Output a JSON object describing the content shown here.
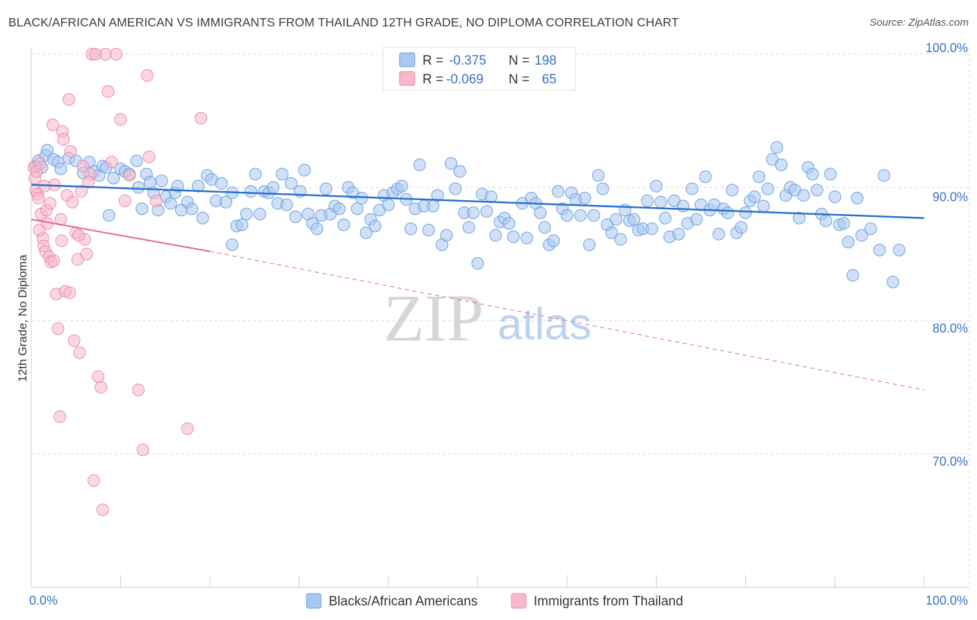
{
  "header": {
    "title": "BLACK/AFRICAN AMERICAN VS IMMIGRANTS FROM THAILAND 12TH GRADE, NO DIPLOMA CORRELATION CHART",
    "source": "Source: ZipAtlas.com"
  },
  "legend_box": {
    "rows": [
      {
        "r_label": "R =",
        "r_value": "-0.375",
        "n_label": "N =",
        "n_value": "198",
        "color": "#a9c8f0"
      },
      {
        "r_label": "R =",
        "r_value": "-0.069",
        "n_label": "N =",
        "n_value": "65",
        "color": "#f6b8cb"
      }
    ]
  },
  "watermark": {
    "zip": "ZIP",
    "atlas": "atlas"
  },
  "chart_data": {
    "type": "scatter",
    "title": "BLACK/AFRICAN AMERICAN VS IMMIGRANTS FROM THAILAND 12TH GRADE, NO DIPLOMA CORRELATION CHART",
    "xlabel": "",
    "ylabel": "12th Grade, No Diploma",
    "xlim": [
      0,
      100
    ],
    "ylim": [
      60.5,
      102.5
    ],
    "x_tick_labels": [
      "0.0%",
      "100.0%"
    ],
    "y_tick_labels": [
      "100.0%",
      "90.0%",
      "80.0%",
      "70.0%"
    ],
    "y_ticks": [
      100,
      90,
      80,
      70
    ],
    "grid": true,
    "legend_position": "bottom",
    "colors": {
      "blue_fill": "#a9c8f0",
      "blue_stroke": "#6a9fe0",
      "blue_line": "#2a6fd0",
      "pink_fill": "#f6b8cb",
      "pink_stroke": "#ee89a8",
      "pink_line": "#e5638f"
    },
    "series": [
      {
        "name": "Blacks/African Americans",
        "color": "#a9c8f0",
        "trend": {
          "x": [
            0,
            100
          ],
          "y": [
            90.2,
            87.7
          ]
        },
        "points": [
          [
            0.5,
            91.6
          ],
          [
            0.8,
            92.0
          ],
          [
            1.2,
            91.5
          ],
          [
            1.6,
            92.4
          ],
          [
            1.8,
            92.8
          ],
          [
            2.5,
            92.1
          ],
          [
            3.0,
            91.9
          ],
          [
            3.3,
            91.4
          ],
          [
            4.2,
            92.2
          ],
          [
            5.0,
            92.0
          ],
          [
            5.8,
            91.1
          ],
          [
            6.5,
            91.9
          ],
          [
            7.0,
            91.2
          ],
          [
            7.6,
            90.9
          ],
          [
            8.0,
            91.6
          ],
          [
            8.4,
            91.5
          ],
          [
            8.7,
            87.9
          ],
          [
            9.2,
            90.7
          ],
          [
            10.0,
            91.4
          ],
          [
            10.5,
            91.2
          ],
          [
            11.0,
            91.0
          ],
          [
            11.8,
            92.0
          ],
          [
            12.0,
            90.0
          ],
          [
            12.4,
            88.4
          ],
          [
            12.9,
            91.0
          ],
          [
            13.3,
            90.4
          ],
          [
            13.7,
            89.6
          ],
          [
            14.2,
            88.3
          ],
          [
            14.6,
            90.5
          ],
          [
            15.1,
            89.3
          ],
          [
            15.6,
            88.8
          ],
          [
            16.1,
            89.6
          ],
          [
            16.4,
            90.1
          ],
          [
            16.8,
            88.3
          ],
          [
            17.5,
            88.9
          ],
          [
            18.0,
            88.4
          ],
          [
            18.7,
            90.1
          ],
          [
            19.2,
            87.7
          ],
          [
            19.7,
            90.9
          ],
          [
            20.2,
            90.6
          ],
          [
            20.7,
            89.0
          ],
          [
            21.3,
            90.3
          ],
          [
            21.8,
            88.9
          ],
          [
            22.5,
            89.6
          ],
          [
            22.5,
            85.7
          ],
          [
            23.0,
            87.1
          ],
          [
            23.6,
            87.2
          ],
          [
            24.1,
            88.0
          ],
          [
            24.6,
            89.7
          ],
          [
            25.1,
            91.0
          ],
          [
            25.6,
            88.0
          ],
          [
            26.1,
            89.7
          ],
          [
            26.6,
            89.6
          ],
          [
            27.1,
            90.0
          ],
          [
            27.6,
            88.8
          ],
          [
            28.1,
            91.0
          ],
          [
            28.6,
            88.7
          ],
          [
            29.1,
            90.3
          ],
          [
            29.6,
            87.8
          ],
          [
            30.1,
            89.7
          ],
          [
            30.6,
            91.3
          ],
          [
            31.0,
            88.0
          ],
          [
            31.5,
            87.3
          ],
          [
            32.0,
            86.9
          ],
          [
            32.5,
            87.9
          ],
          [
            33.0,
            89.9
          ],
          [
            33.5,
            88.0
          ],
          [
            34.0,
            88.6
          ],
          [
            34.5,
            88.4
          ],
          [
            35.0,
            87.2
          ],
          [
            35.5,
            90.0
          ],
          [
            36.0,
            89.6
          ],
          [
            36.5,
            88.4
          ],
          [
            37.0,
            89.2
          ],
          [
            37.5,
            86.6
          ],
          [
            38.0,
            87.6
          ],
          [
            38.5,
            87.1
          ],
          [
            39.0,
            88.3
          ],
          [
            39.5,
            89.4
          ],
          [
            40.0,
            88.7
          ],
          [
            40.5,
            89.6
          ],
          [
            41.0,
            89.9
          ],
          [
            41.5,
            90.1
          ],
          [
            42.0,
            89.1
          ],
          [
            42.5,
            86.9
          ],
          [
            43.0,
            88.4
          ],
          [
            43.5,
            91.7
          ],
          [
            44.0,
            88.6
          ],
          [
            44.5,
            86.8
          ],
          [
            45.0,
            88.6
          ],
          [
            45.5,
            89.4
          ],
          [
            46.0,
            85.7
          ],
          [
            46.5,
            86.4
          ],
          [
            47.0,
            91.8
          ],
          [
            47.5,
            89.9
          ],
          [
            48.0,
            91.2
          ],
          [
            48.5,
            88.1
          ],
          [
            49.0,
            87.0
          ],
          [
            49.5,
            88.1
          ],
          [
            50.0,
            84.3
          ],
          [
            50.5,
            89.5
          ],
          [
            51.0,
            88.2
          ],
          [
            51.5,
            89.3
          ],
          [
            52.0,
            86.4
          ],
          [
            52.5,
            87.4
          ],
          [
            53.0,
            87.7
          ],
          [
            53.5,
            87.3
          ],
          [
            54.0,
            86.3
          ],
          [
            55.0,
            88.8
          ],
          [
            55.5,
            86.2
          ],
          [
            56.0,
            89.2
          ],
          [
            56.5,
            88.8
          ],
          [
            57.0,
            88.1
          ],
          [
            57.5,
            87.0
          ],
          [
            58.0,
            85.7
          ],
          [
            58.5,
            86.0
          ],
          [
            59.0,
            89.7
          ],
          [
            59.5,
            88.4
          ],
          [
            60.0,
            87.9
          ],
          [
            60.5,
            89.6
          ],
          [
            61.0,
            89.1
          ],
          [
            61.5,
            87.9
          ],
          [
            62.0,
            89.2
          ],
          [
            62.5,
            85.7
          ],
          [
            63.0,
            87.9
          ],
          [
            63.5,
            90.9
          ],
          [
            64.0,
            89.9
          ],
          [
            64.5,
            87.2
          ],
          [
            65.0,
            86.6
          ],
          [
            65.5,
            87.6
          ],
          [
            66.0,
            86.1
          ],
          [
            66.5,
            88.3
          ],
          [
            67.0,
            87.5
          ],
          [
            67.5,
            87.6
          ],
          [
            68.0,
            86.8
          ],
          [
            68.5,
            86.9
          ],
          [
            69.0,
            89.0
          ],
          [
            69.5,
            86.9
          ],
          [
            70.0,
            90.1
          ],
          [
            70.5,
            88.9
          ],
          [
            71.0,
            87.7
          ],
          [
            71.5,
            86.3
          ],
          [
            72.0,
            89.0
          ],
          [
            72.5,
            86.5
          ],
          [
            73.0,
            88.6
          ],
          [
            73.5,
            87.3
          ],
          [
            74.0,
            89.9
          ],
          [
            74.5,
            87.6
          ],
          [
            75.0,
            88.7
          ],
          [
            75.5,
            90.8
          ],
          [
            76.0,
            88.3
          ],
          [
            76.5,
            88.7
          ],
          [
            77.0,
            86.5
          ],
          [
            77.5,
            88.4
          ],
          [
            78.0,
            88.1
          ],
          [
            78.5,
            89.8
          ],
          [
            79.0,
            86.6
          ],
          [
            79.5,
            87.0
          ],
          [
            80.0,
            88.1
          ],
          [
            80.5,
            89.0
          ],
          [
            81.0,
            89.3
          ],
          [
            81.5,
            90.8
          ],
          [
            82.0,
            88.6
          ],
          [
            82.5,
            89.9
          ],
          [
            83.0,
            92.1
          ],
          [
            83.5,
            93.0
          ],
          [
            84.0,
            91.7
          ],
          [
            84.5,
            89.4
          ],
          [
            85.0,
            90.0
          ],
          [
            85.5,
            89.8
          ],
          [
            86.0,
            87.7
          ],
          [
            86.5,
            89.4
          ],
          [
            87.0,
            91.5
          ],
          [
            87.5,
            91.0
          ],
          [
            88.0,
            89.8
          ],
          [
            88.5,
            88.0
          ],
          [
            89.0,
            87.5
          ],
          [
            89.5,
            91.0
          ],
          [
            90.0,
            89.3
          ],
          [
            90.5,
            87.2
          ],
          [
            91.0,
            87.3
          ],
          [
            91.5,
            85.9
          ],
          [
            92.0,
            83.4
          ],
          [
            92.5,
            89.2
          ],
          [
            93.0,
            86.4
          ],
          [
            94.0,
            86.9
          ],
          [
            95.0,
            85.3
          ],
          [
            95.5,
            90.9
          ],
          [
            96.5,
            82.9
          ],
          [
            97.2,
            85.3
          ]
        ]
      },
      {
        "name": "Immigrants from Thailand",
        "color": "#f6b8cb",
        "trend_solid": {
          "x": [
            0,
            20
          ],
          "y": [
            87.6,
            85.2
          ]
        },
        "trend_dashed": {
          "x": [
            20,
            100
          ],
          "y": [
            85.2,
            74.8
          ]
        },
        "points": [
          [
            0.3,
            91.5
          ],
          [
            0.4,
            90.7
          ],
          [
            0.5,
            89.8
          ],
          [
            0.6,
            91.2
          ],
          [
            0.7,
            89.5
          ],
          [
            0.8,
            89.2
          ],
          [
            1.0,
            91.8
          ],
          [
            1.1,
            88.0
          ],
          [
            1.3,
            86.2
          ],
          [
            1.4,
            85.6
          ],
          [
            1.6,
            85.2
          ],
          [
            1.7,
            88.3
          ],
          [
            1.8,
            87.3
          ],
          [
            2.0,
            84.8
          ],
          [
            2.1,
            88.8
          ],
          [
            2.2,
            84.4
          ],
          [
            2.5,
            84.5
          ],
          [
            2.6,
            90.2
          ],
          [
            2.8,
            82.0
          ],
          [
            3.0,
            79.4
          ],
          [
            3.2,
            72.8
          ],
          [
            3.4,
            86.0
          ],
          [
            3.5,
            94.2
          ],
          [
            3.6,
            93.6
          ],
          [
            3.8,
            82.2
          ],
          [
            4.0,
            89.4
          ],
          [
            4.2,
            96.6
          ],
          [
            4.4,
            92.7
          ],
          [
            4.6,
            88.9
          ],
          [
            4.8,
            78.5
          ],
          [
            5.0,
            86.6
          ],
          [
            5.2,
            84.6
          ],
          [
            5.4,
            77.6
          ],
          [
            5.6,
            89.7
          ],
          [
            5.8,
            91.6
          ],
          [
            6.0,
            86.1
          ],
          [
            6.2,
            85.0
          ],
          [
            6.6,
            91.0
          ],
          [
            6.8,
            100.0
          ],
          [
            7.0,
            68.0
          ],
          [
            7.2,
            100.0
          ],
          [
            7.5,
            75.8
          ],
          [
            7.8,
            75.0
          ],
          [
            8.0,
            65.8
          ],
          [
            8.3,
            100.0
          ],
          [
            8.6,
            97.2
          ],
          [
            9.0,
            91.9
          ],
          [
            9.5,
            100.0
          ],
          [
            10.0,
            95.1
          ],
          [
            10.5,
            89.0
          ],
          [
            11.0,
            90.9
          ],
          [
            12.0,
            74.8
          ],
          [
            12.5,
            70.3
          ],
          [
            13.0,
            98.4
          ],
          [
            13.2,
            92.3
          ],
          [
            14.0,
            89.0
          ],
          [
            17.5,
            71.9
          ],
          [
            19.0,
            95.2
          ],
          [
            4.3,
            82.1
          ],
          [
            1.5,
            90.1
          ],
          [
            2.4,
            94.7
          ],
          [
            3.3,
            87.6
          ],
          [
            5.3,
            86.4
          ],
          [
            6.4,
            90.4
          ],
          [
            0.9,
            86.8
          ]
        ]
      }
    ]
  },
  "bottom_legend": {
    "items": [
      {
        "label": "Blacks/African Americans",
        "color": "#a9c8f0"
      },
      {
        "label": "Immigrants from Thailand",
        "color": "#f6b8cb"
      }
    ]
  }
}
